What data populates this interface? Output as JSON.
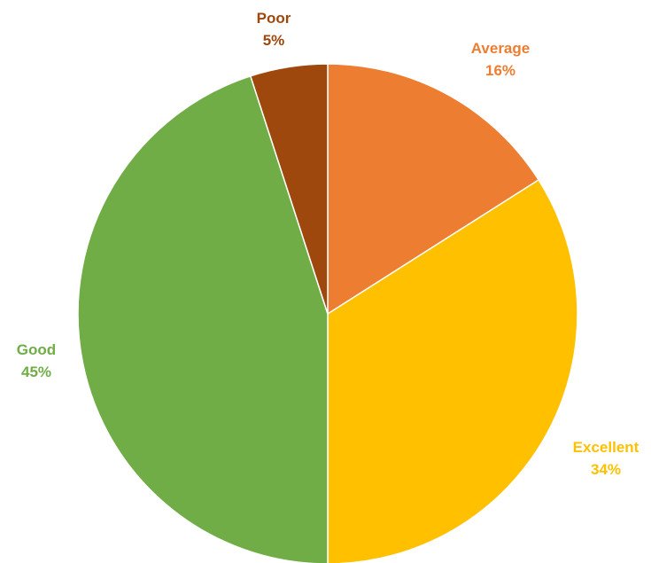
{
  "chart_data": {
    "type": "pie",
    "title": "",
    "legend": "none",
    "slices": [
      {
        "label": "Average",
        "value": 16,
        "display": "16%",
        "color": "#ED7D31"
      },
      {
        "label": "Excellent",
        "value": 34,
        "display": "34%",
        "color": "#FFC000"
      },
      {
        "label": "Good",
        "value": 45,
        "display": "45%",
        "color": "#70AD47"
      },
      {
        "label": "Poor",
        "value": 5,
        "display": "5%",
        "color": "#9E480E"
      }
    ]
  }
}
